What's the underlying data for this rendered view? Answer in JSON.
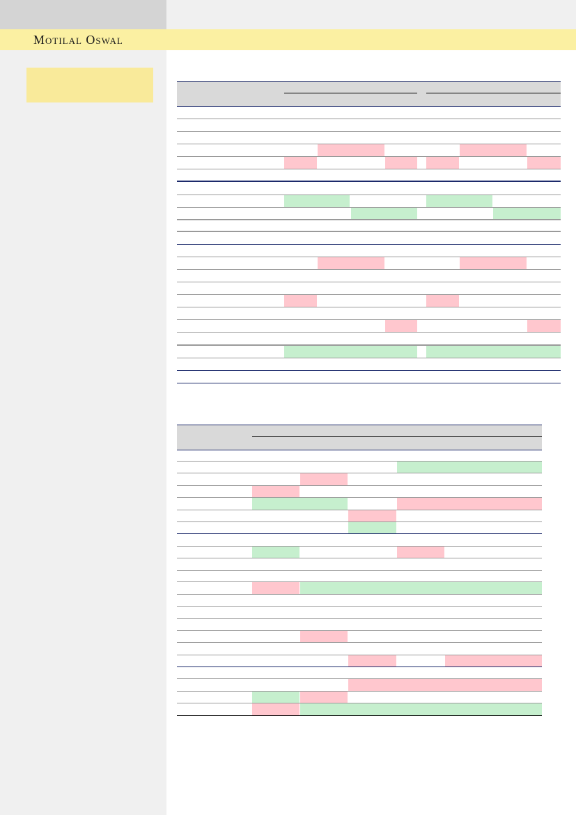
{
  "header": {
    "brand": "Motilal Oswal"
  },
  "table1": {},
  "table2": {}
}
